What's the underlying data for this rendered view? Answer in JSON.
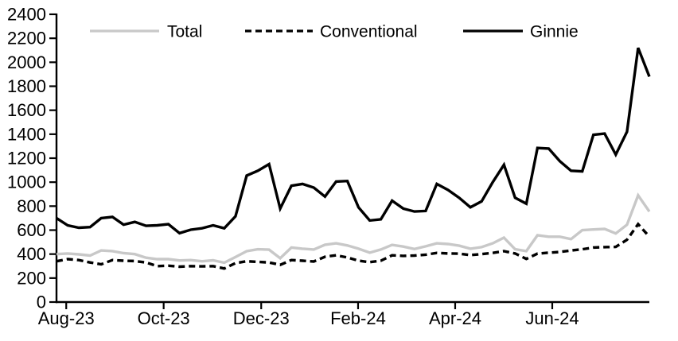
{
  "chart_data": {
    "type": "line",
    "title": "",
    "grid": false,
    "legend_position": "top",
    "x_axis": {
      "unit": "week",
      "n_points": 54,
      "tick_labels": [
        "Aug-23",
        "Oct-23",
        "Dec-23",
        "Feb-24",
        "Apr-24",
        "Jun-24"
      ],
      "tick_week_positions": [
        0.87,
        9.58,
        18.3,
        26.96,
        35.64,
        44.32
      ]
    },
    "y_axis": {
      "min": 0,
      "max": 2400,
      "step": 200
    },
    "series": [
      {
        "name": "Total",
        "color": "#c8c8c8",
        "style": "solid",
        "values": [
          400,
          405,
          398,
          388,
          430,
          425,
          408,
          400,
          370,
          358,
          358,
          347,
          350,
          340,
          348,
          328,
          375,
          424,
          440,
          437,
          365,
          455,
          445,
          438,
          478,
          490,
          472,
          445,
          412,
          438,
          477,
          463,
          442,
          465,
          490,
          484,
          470,
          445,
          458,
          490,
          537,
          440,
          425,
          557,
          545,
          545,
          525,
          600,
          605,
          610,
          572,
          645,
          890,
          755
        ]
      },
      {
        "name": "Conventional",
        "color": "#000000",
        "style": "dashed",
        "values": [
          340,
          358,
          350,
          330,
          315,
          350,
          345,
          342,
          330,
          300,
          303,
          295,
          300,
          298,
          300,
          280,
          325,
          340,
          335,
          330,
          310,
          350,
          345,
          338,
          378,
          390,
          372,
          345,
          333,
          345,
          390,
          385,
          388,
          395,
          410,
          405,
          404,
          392,
          400,
          410,
          424,
          405,
          360,
          404,
          412,
          418,
          430,
          440,
          455,
          458,
          460,
          520,
          650,
          545
        ]
      },
      {
        "name": "Ginnie",
        "color": "#000000",
        "style": "solid",
        "values": [
          700,
          640,
          620,
          625,
          700,
          710,
          645,
          668,
          636,
          640,
          650,
          575,
          603,
          615,
          640,
          615,
          715,
          1055,
          1095,
          1150,
          780,
          970,
          985,
          955,
          880,
          1005,
          1010,
          790,
          680,
          690,
          845,
          780,
          755,
          760,
          985,
          935,
          870,
          790,
          840,
          1000,
          1145,
          870,
          820,
          1285,
          1280,
          1175,
          1095,
          1090,
          1395,
          1405,
          1230,
          1420,
          2120,
          1880
        ]
      }
    ]
  },
  "colors": {
    "background": "#ffffff",
    "axis": "#000000",
    "text": "#000000"
  }
}
